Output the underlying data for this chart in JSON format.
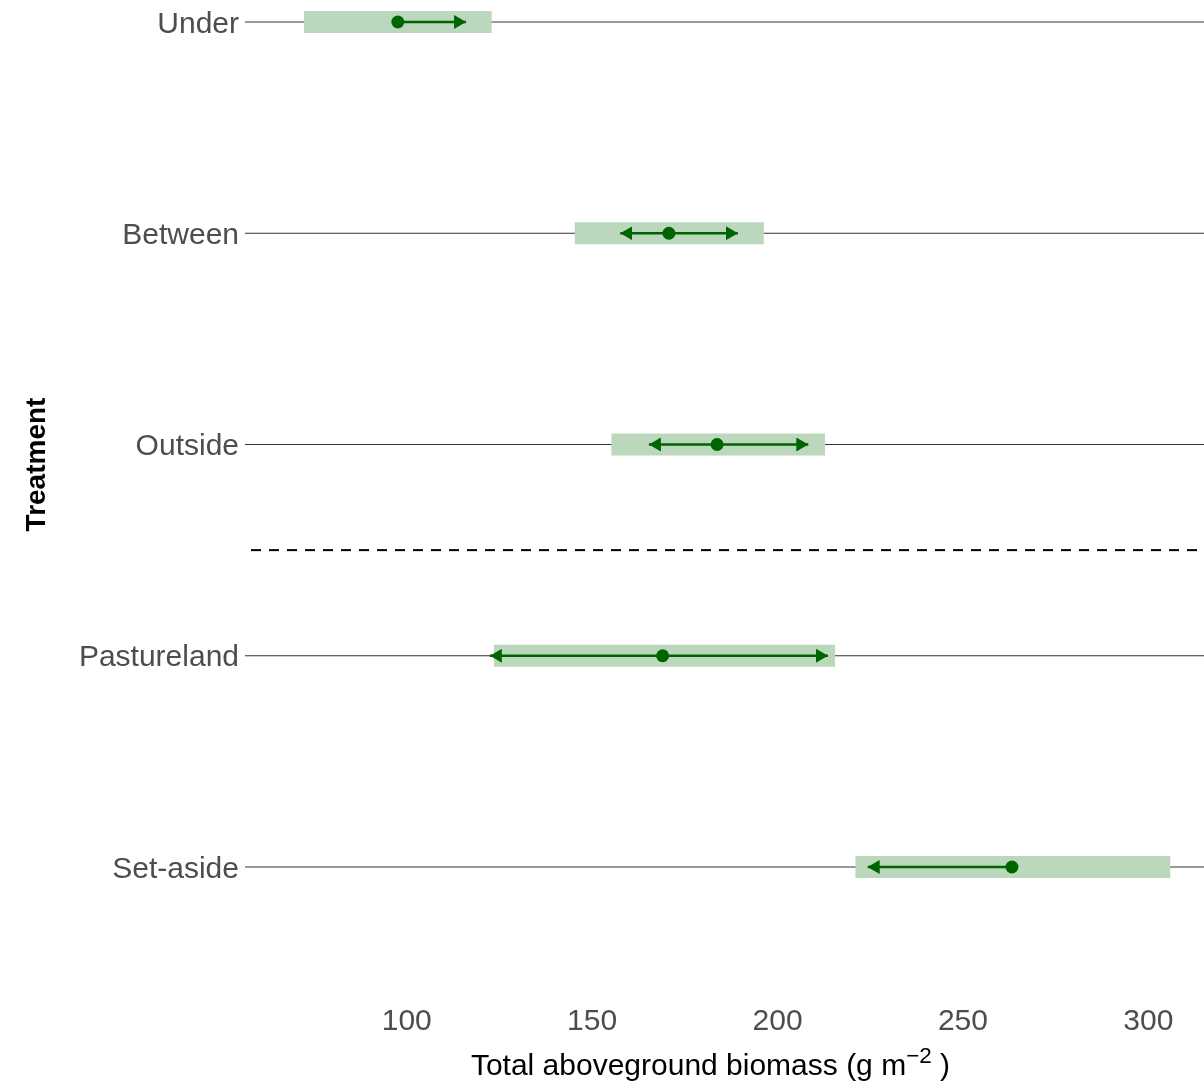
{
  "chart_data": {
    "type": "scatter",
    "orientation": "horizontal",
    "xlabel": "Total aboveground biomass (g m$^{−2}$ )",
    "ylabel": "Treatment",
    "categories": [
      "Under",
      "Between",
      "Outside",
      "Pastureland",
      "Set-aside"
    ],
    "series": [
      {
        "type": "bar",
        "color": "#bcd8bc",
        "base": [
          72.3,
          145.3,
          155.2,
          123.5,
          221
        ],
        "values": [
          50.6,
          51,
          57.6,
          92,
          84.9
        ]
      },
      {
        "color": "#006400",
        "values": [
          97.6,
          170.7,
          183.7,
          169,
          263.2
        ],
        "errors": [
          [
            97.6,
            116
          ],
          [
            157.6,
            189.3
          ],
          [
            165.3,
            208.3
          ],
          [
            122.4,
            213.6
          ],
          [
            224.3,
            263.2
          ]
        ]
      }
    ],
    "xlim": [
      58,
      315
    ],
    "xticks": [
      100,
      150,
      200,
      250,
      300
    ],
    "grid": "y",
    "marker": "circle"
  }
}
